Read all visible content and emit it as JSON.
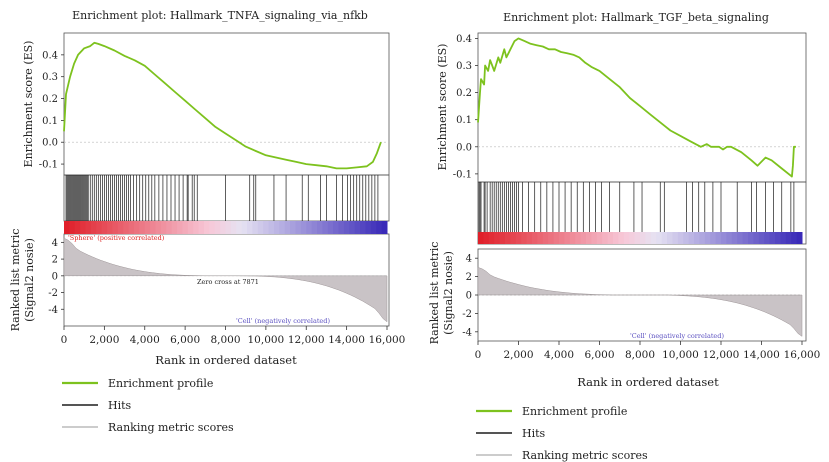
{
  "chart_data": [
    {
      "type": "line",
      "title": "Enrichment plot: Hallmark_TNFA_signaling_via_nfkb",
      "xlabel": "Rank in ordered dataset",
      "ylabel": "Enrichment score (ES)",
      "ylabel_rank_lines": [
        "Ranked list metric",
        "(Signal2 nosie)"
      ],
      "xlim": [
        0,
        16000
      ],
      "ylim": [
        -0.15,
        0.5
      ],
      "yticks": [
        -0.1,
        0.0,
        0.1,
        0.2,
        0.3,
        0.4
      ],
      "xticks": [
        0,
        2000,
        4000,
        6000,
        8000,
        10000,
        12000,
        14000,
        16000
      ],
      "xtick_labels": [
        "0",
        "2,000",
        "4,000",
        "6,000",
        "8,000",
        "10,000",
        "12,000",
        "14,000",
        "16,000"
      ],
      "rank_ylim": [
        -6,
        5
      ],
      "rank_yticks": [
        4,
        2,
        0,
        -2,
        -4
      ],
      "grid": false,
      "series": [
        {
          "name": "Enrichment profile",
          "color": "#7dc21e",
          "x": [
            0,
            100,
            300,
            500,
            700,
            1000,
            1300,
            1500,
            1700,
            2000,
            2500,
            3000,
            3500,
            4000,
            4500,
            5000,
            5500,
            6000,
            6500,
            7000,
            7500,
            8000,
            8500,
            9000,
            9500,
            10000,
            10500,
            11000,
            11500,
            12000,
            12500,
            13000,
            13500,
            14000,
            14500,
            15000,
            15300,
            15500,
            15700
          ],
          "y": [
            0.05,
            0.22,
            0.3,
            0.36,
            0.4,
            0.43,
            0.44,
            0.455,
            0.45,
            0.44,
            0.42,
            0.395,
            0.375,
            0.35,
            0.31,
            0.27,
            0.23,
            0.19,
            0.15,
            0.11,
            0.07,
            0.04,
            0.01,
            -0.02,
            -0.04,
            -0.06,
            -0.07,
            -0.08,
            -0.09,
            -0.1,
            -0.105,
            -0.11,
            -0.12,
            -0.12,
            -0.115,
            -0.11,
            -0.09,
            -0.05,
            0.0
          ]
        }
      ],
      "hits": [
        100,
        150,
        200,
        250,
        300,
        350,
        400,
        450,
        500,
        550,
        600,
        650,
        700,
        750,
        800,
        850,
        900,
        950,
        1000,
        1050,
        1100,
        1150,
        1200,
        1300,
        1400,
        1500,
        1600,
        1700,
        1800,
        1900,
        2000,
        2100,
        2200,
        2300,
        2400,
        2500,
        2600,
        2700,
        2800,
        2900,
        3000,
        3100,
        3200,
        3300,
        3450,
        3600,
        3750,
        3900,
        4050,
        4200,
        4350,
        4500,
        4700,
        4900,
        5100,
        5300,
        5500,
        5700,
        5900,
        6100,
        6150,
        6350,
        6450,
        6600,
        8000,
        9200,
        9400,
        9500,
        10400,
        11000,
        11800,
        12100,
        12700,
        13000,
        13500,
        13800,
        14050,
        14200,
        14350,
        14500,
        14650,
        14800,
        14950,
        15100,
        15250,
        15400,
        15550
      ],
      "rank_metric": {
        "left_start": 4.5,
        "right_end": -5.5,
        "zero_cross": 7871
      },
      "annotations": {
        "positive": "'Sphere' (positive correlated)",
        "negative": "'Cell' (negatively correlated)",
        "zero_cross": "Zero cross at 7871"
      },
      "legend": [
        "Enrichment profile",
        "Hits",
        "Ranking metric scores"
      ],
      "legend_placement": "bottom-left"
    },
    {
      "type": "line",
      "title": "Enrichment plot: Hallmark_TGF_beta_signaling",
      "xlabel": "Rank in ordered dataset",
      "ylabel": "Enrichment score (ES)",
      "ylabel_rank_lines": [
        "Ranked list metric",
        "(Signal2 nosie)"
      ],
      "xlim": [
        0,
        16000
      ],
      "ylim": [
        -0.13,
        0.42
      ],
      "yticks": [
        -0.1,
        0.0,
        0.1,
        0.2,
        0.3,
        0.4
      ],
      "xticks": [
        0,
        2000,
        4000,
        6000,
        8000,
        10000,
        12000,
        14000,
        16000
      ],
      "xtick_labels": [
        "0",
        "2,000",
        "4,000",
        "6,000",
        "8,000",
        "10,000",
        "12,000",
        "14,000",
        "16,000"
      ],
      "rank_ylim": [
        -5,
        5
      ],
      "rank_yticks": [
        4,
        2,
        0,
        -2,
        -4
      ],
      "grid": false,
      "series": [
        {
          "name": "Enrichment profile",
          "color": "#7dc21e",
          "x": [
            0,
            100,
            150,
            300,
            350,
            500,
            600,
            700,
            800,
            1000,
            1100,
            1300,
            1400,
            1600,
            1800,
            2000,
            2300,
            2600,
            2900,
            3200,
            3500,
            3800,
            4100,
            4400,
            4700,
            5000,
            5300,
            5600,
            6000,
            6500,
            7000,
            7500,
            8000,
            8500,
            9000,
            9500,
            10000,
            10500,
            11000,
            11300,
            11500,
            11700,
            11900,
            12100,
            12300,
            12500,
            13000,
            13500,
            13800,
            14200,
            14500,
            15000,
            15500,
            15550,
            15600,
            15700
          ],
          "y": [
            0.09,
            0.2,
            0.25,
            0.23,
            0.3,
            0.28,
            0.32,
            0.3,
            0.28,
            0.33,
            0.31,
            0.36,
            0.33,
            0.36,
            0.39,
            0.4,
            0.39,
            0.38,
            0.375,
            0.37,
            0.36,
            0.36,
            0.35,
            0.345,
            0.34,
            0.33,
            0.31,
            0.295,
            0.28,
            0.25,
            0.22,
            0.18,
            0.15,
            0.12,
            0.09,
            0.06,
            0.04,
            0.02,
            0.0,
            0.01,
            0.0,
            0.0,
            0.0,
            -0.01,
            0.0,
            0.0,
            -0.02,
            -0.05,
            -0.07,
            -0.04,
            -0.05,
            -0.08,
            -0.11,
            -0.07,
            0.0,
            0.0
          ]
        }
      ],
      "hits": [
        50,
        100,
        150,
        300,
        350,
        450,
        600,
        700,
        800,
        900,
        1000,
        1100,
        1200,
        1300,
        1400,
        1500,
        1600,
        1700,
        1800,
        1900,
        2000,
        2200,
        2500,
        2800,
        3100,
        3400,
        3700,
        4000,
        4300,
        4600,
        4900,
        5200,
        5500,
        5800,
        6100,
        6500,
        7000,
        7700,
        8100,
        9000,
        9200,
        10300,
        10600,
        10900,
        11200,
        11600,
        12000,
        12800,
        13500,
        13750,
        14200,
        14600,
        15000,
        15450,
        15600
      ],
      "rank_metric": {
        "left_start": 3.0,
        "right_end": -4.5,
        "gap_start": 6400,
        "gap_end": 9600
      },
      "annotations": {
        "negative": "'Cell' (negatively correlated)"
      },
      "legend": [
        "Enrichment profile",
        "Hits",
        "Ranking metric scores"
      ],
      "legend_placement": "bottom-left"
    }
  ]
}
